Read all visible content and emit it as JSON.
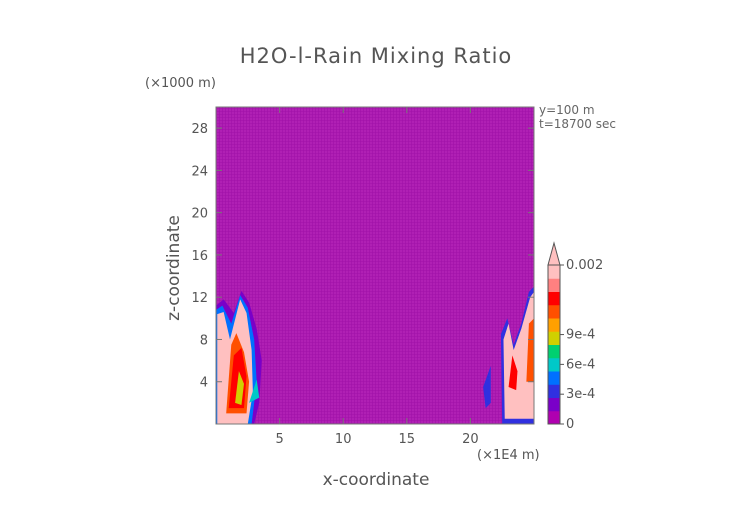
{
  "chart_data": {
    "type": "heatmap",
    "title": "H2O-l-Rain Mixing Ratio",
    "xlabel": "x-coordinate",
    "ylabel": "z-coordinate",
    "x_unit": "(×1E4 m)",
    "y_unit": "(×1000 m)",
    "annotations": [
      "y=100 m",
      "t=18700 sec"
    ],
    "xlim": [
      0,
      25
    ],
    "ylim": [
      0,
      30
    ],
    "x_ticks": [
      5,
      10,
      15,
      20
    ],
    "y_ticks": [
      4,
      8,
      12,
      16,
      20,
      24,
      28
    ],
    "background_level": 0,
    "colorbar": {
      "range": [
        0,
        0.002
      ],
      "tick_labels": [
        "0",
        "3e-4",
        "6e-4",
        "9e-4",
        "0.002"
      ],
      "tick_values": [
        0,
        0.0003,
        0.0006,
        0.0009,
        0.002
      ],
      "colors": [
        "#b000b0",
        "#7a00c8",
        "#3030e0",
        "#0070ff",
        "#00c8c8",
        "#00d070",
        "#d0d000",
        "#ffa000",
        "#ff5000",
        "#ff0000",
        "#ff8080",
        "#ffc0c0"
      ]
    },
    "features": [
      {
        "label": "rain shaft west",
        "x_range": [
          0,
          3.5
        ],
        "z_range": [
          0,
          12.5
        ],
        "max": 0.002
      },
      {
        "label": "rain shaft east",
        "x_range": [
          20.5,
          25
        ],
        "z_range": [
          0,
          13
        ],
        "max": 0.002
      }
    ]
  }
}
